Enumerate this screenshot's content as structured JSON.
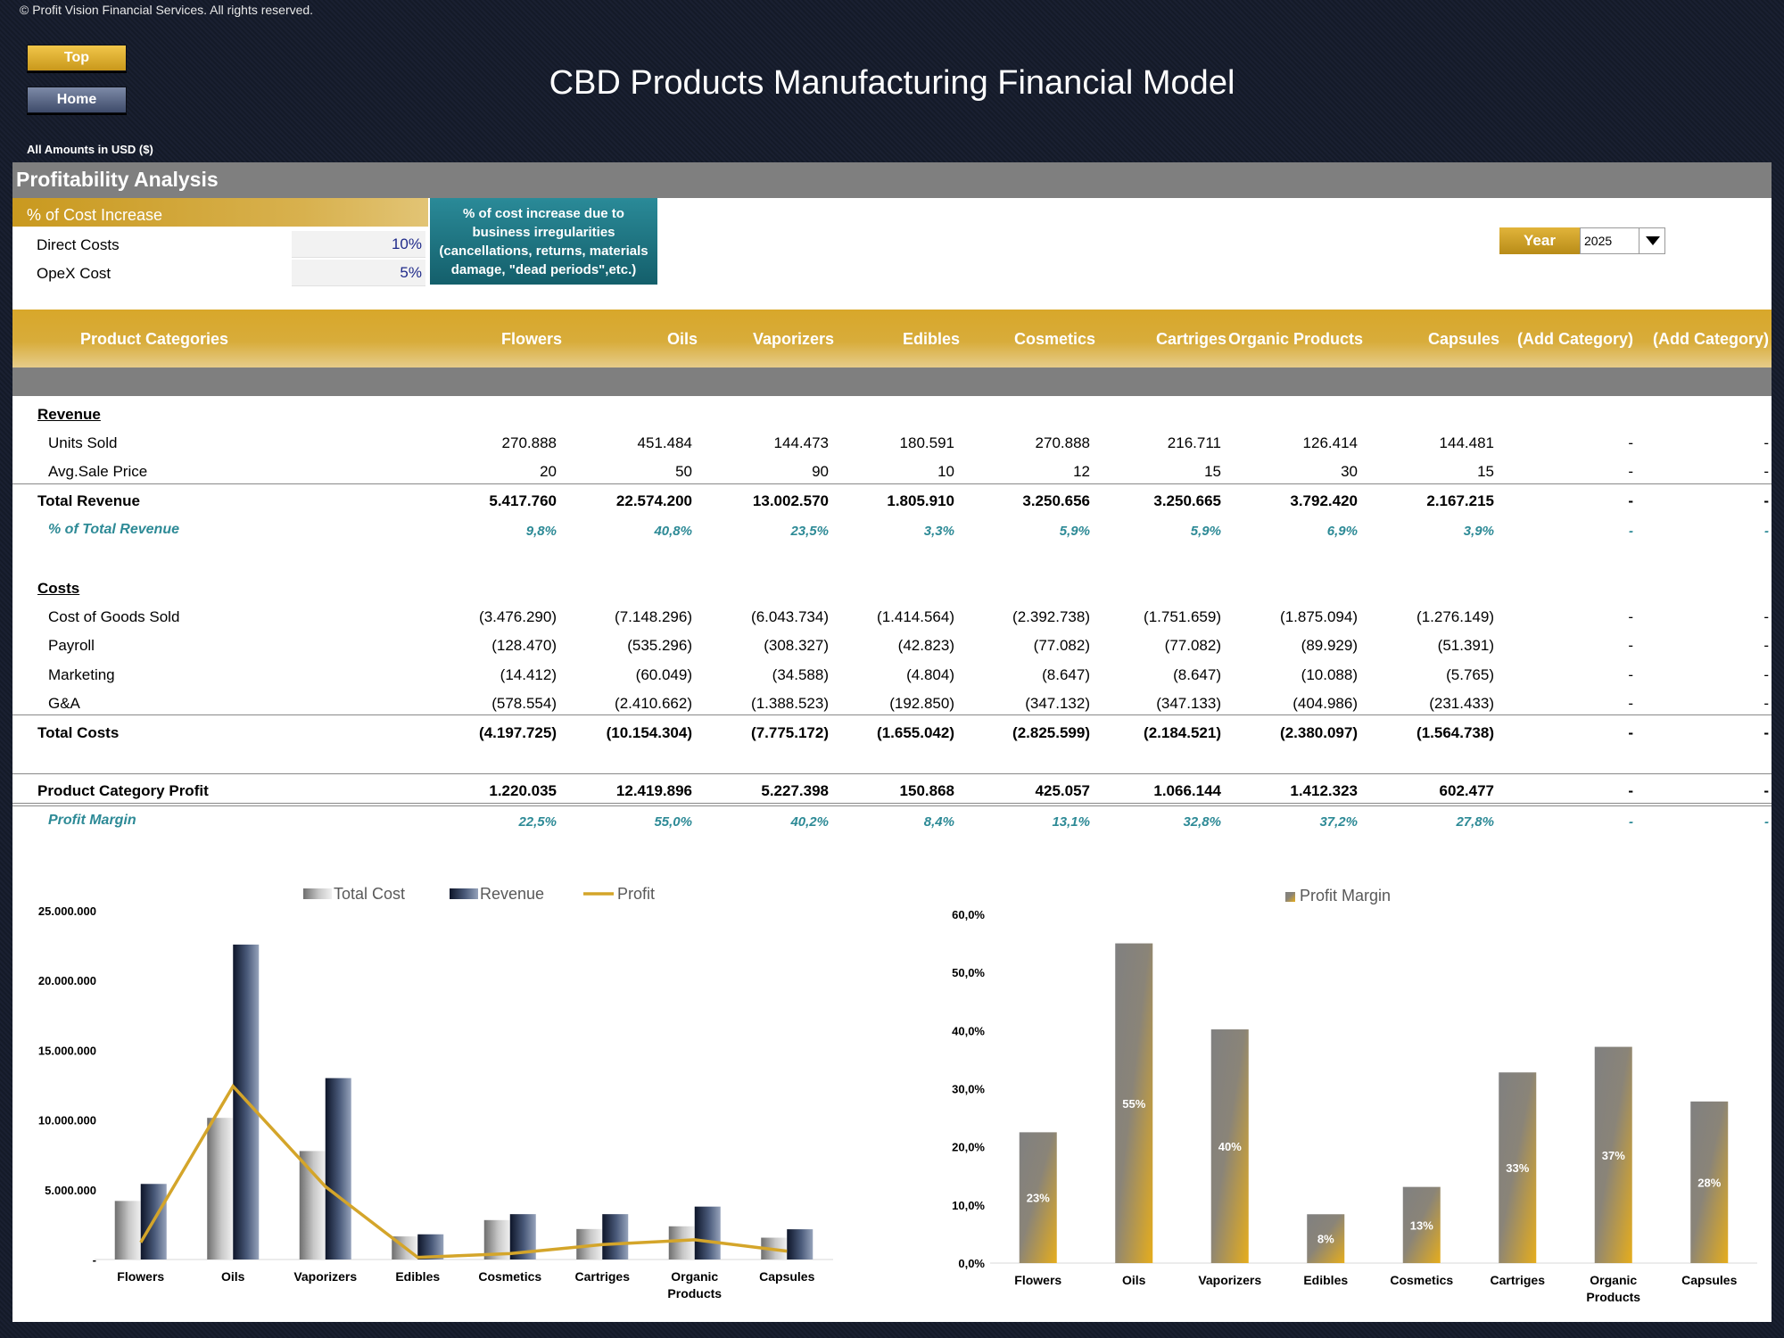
{
  "copyright": "© Profit Vision Financial Services. All rights reserved.",
  "nav": {
    "top_label": "Top",
    "home_label": "Home"
  },
  "title": "CBD Products Manufacturing Financial Model",
  "amounts_label": "All Amounts in  USD ($)",
  "section_title": "Profitability Analysis",
  "cost_increase": {
    "header": "% of Cost Increase",
    "rows": [
      {
        "label": "Direct Costs",
        "value": "10%"
      },
      {
        "label": "OpeX Cost",
        "value": "5%"
      }
    ],
    "note": "% of cost increase due to business irregularities (cancellations, returns, materials damage, \"dead periods\",etc.)"
  },
  "year": {
    "label": "Year",
    "selected": "2025"
  },
  "table": {
    "header_label": "Product Categories",
    "columns": [
      "Flowers",
      "Oils",
      "Vaporizers",
      "Edibles",
      "Cosmetics",
      "Cartriges",
      "Organic Products",
      "Capsules",
      "(Add Category)",
      "(Add Category)"
    ],
    "rows": [
      {
        "label": "Revenue",
        "style": "u",
        "values": []
      },
      {
        "label": "Units Sold",
        "style": "i",
        "values": [
          "270.888",
          "451.484",
          "144.473",
          "180.591",
          "270.888",
          "216.711",
          "126.414",
          "144.481",
          "-",
          "-"
        ]
      },
      {
        "label": "Avg.Sale Price",
        "style": "i",
        "values": [
          "20",
          "50",
          "90",
          "10",
          "12",
          "15",
          "30",
          "15",
          "-",
          "-"
        ]
      },
      {
        "label": "Total Revenue",
        "style": "b",
        "values": [
          "5.417.760",
          "22.574.200",
          "13.002.570",
          "1.805.910",
          "3.250.656",
          "3.250.665",
          "3.792.420",
          "2.167.215",
          "-",
          "-"
        ]
      },
      {
        "label": "% of Total Revenue",
        "style": "pct",
        "values": [
          "9,8%",
          "40,8%",
          "23,5%",
          "3,3%",
          "5,9%",
          "5,9%",
          "6,9%",
          "3,9%",
          "-",
          "-"
        ]
      },
      {
        "label": "Costs",
        "style": "u",
        "values": []
      },
      {
        "label": "Cost of Goods Sold",
        "style": "i",
        "values": [
          "(3.476.290)",
          "(7.148.296)",
          "(6.043.734)",
          "(1.414.564)",
          "(2.392.738)",
          "(1.751.659)",
          "(1.875.094)",
          "(1.276.149)",
          "-",
          "-"
        ]
      },
      {
        "label": "Payroll",
        "style": "i",
        "values": [
          "(128.470)",
          "(535.296)",
          "(308.327)",
          "(42.823)",
          "(77.082)",
          "(77.082)",
          "(89.929)",
          "(51.391)",
          "-",
          "-"
        ]
      },
      {
        "label": "Marketing",
        "style": "i",
        "values": [
          "(14.412)",
          "(60.049)",
          "(34.588)",
          "(4.804)",
          "(8.647)",
          "(8.647)",
          "(10.088)",
          "(5.765)",
          "-",
          "-"
        ]
      },
      {
        "label": "G&A",
        "style": "i",
        "values": [
          "(578.554)",
          "(2.410.662)",
          "(1.388.523)",
          "(192.850)",
          "(347.132)",
          "(347.133)",
          "(404.986)",
          "(231.433)",
          "-",
          "-"
        ]
      },
      {
        "label": "Total Costs",
        "style": "b",
        "values": [
          "(4.197.725)",
          "(10.154.304)",
          "(7.775.172)",
          "(1.655.042)",
          "(2.825.599)",
          "(2.184.521)",
          "(2.380.097)",
          "(1.564.738)",
          "-",
          "-"
        ]
      },
      {
        "label": "Product Category Profit",
        "style": "b",
        "values": [
          "1.220.035",
          "12.419.896",
          "5.227.398",
          "150.868",
          "425.057",
          "1.066.144",
          "1.412.323",
          "602.477",
          "-",
          "-"
        ]
      },
      {
        "label": "Profit Margin",
        "style": "pct",
        "values": [
          "22,5%",
          "55,0%",
          "40,2%",
          "8,4%",
          "13,1%",
          "32,8%",
          "37,2%",
          "27,8%",
          "-",
          "-"
        ]
      }
    ]
  },
  "chart_data": [
    {
      "type": "bar",
      "categories": [
        "Flowers",
        "Oils",
        "Vaporizers",
        "Edibles",
        "Cosmetics",
        "Cartriges",
        "Organic Products",
        "Capsules"
      ],
      "series": [
        {
          "name": "Total Cost",
          "type": "bar",
          "values": [
            4197725,
            10154304,
            7775172,
            1655042,
            2825599,
            2184521,
            2380097,
            1564738
          ]
        },
        {
          "name": "Revenue",
          "type": "bar",
          "values": [
            5417760,
            22574200,
            13002570,
            1805910,
            3250656,
            3250665,
            3792420,
            2167215
          ]
        },
        {
          "name": "Profit",
          "type": "line",
          "values": [
            1220035,
            12419896,
            5227398,
            150868,
            425057,
            1066144,
            1412323,
            602477
          ]
        }
      ],
      "yticks": [
        "-",
        "5.000.000",
        "10.000.000",
        "15.000.000",
        "20.000.000",
        "25.000.000"
      ],
      "ylim": [
        0,
        25000000
      ],
      "legend": "top",
      "colors": {
        "Total Cost": "#a6a6a6",
        "Revenue": "#2b3a5a",
        "Profit": "#d4a52a"
      }
    },
    {
      "type": "bar",
      "categories": [
        "Flowers",
        "Oils",
        "Vaporizers",
        "Edibles",
        "Cosmetics",
        "Cartriges",
        "Organic Products",
        "Capsules"
      ],
      "series": [
        {
          "name": "Profit Margin",
          "values": [
            22.5,
            55.0,
            40.2,
            8.4,
            13.1,
            32.8,
            37.2,
            27.8
          ],
          "labels": [
            "23%",
            "55%",
            "40%",
            "8%",
            "13%",
            "33%",
            "37%",
            "28%"
          ]
        }
      ],
      "yticks": [
        "0,0%",
        "10,0%",
        "20,0%",
        "30,0%",
        "40,0%",
        "50,0%",
        "60,0%"
      ],
      "ylim": [
        0,
        60
      ],
      "legend": "top",
      "colors": {
        "Profit Margin": "#808080",
        "accent": "#e0a91c"
      }
    }
  ]
}
